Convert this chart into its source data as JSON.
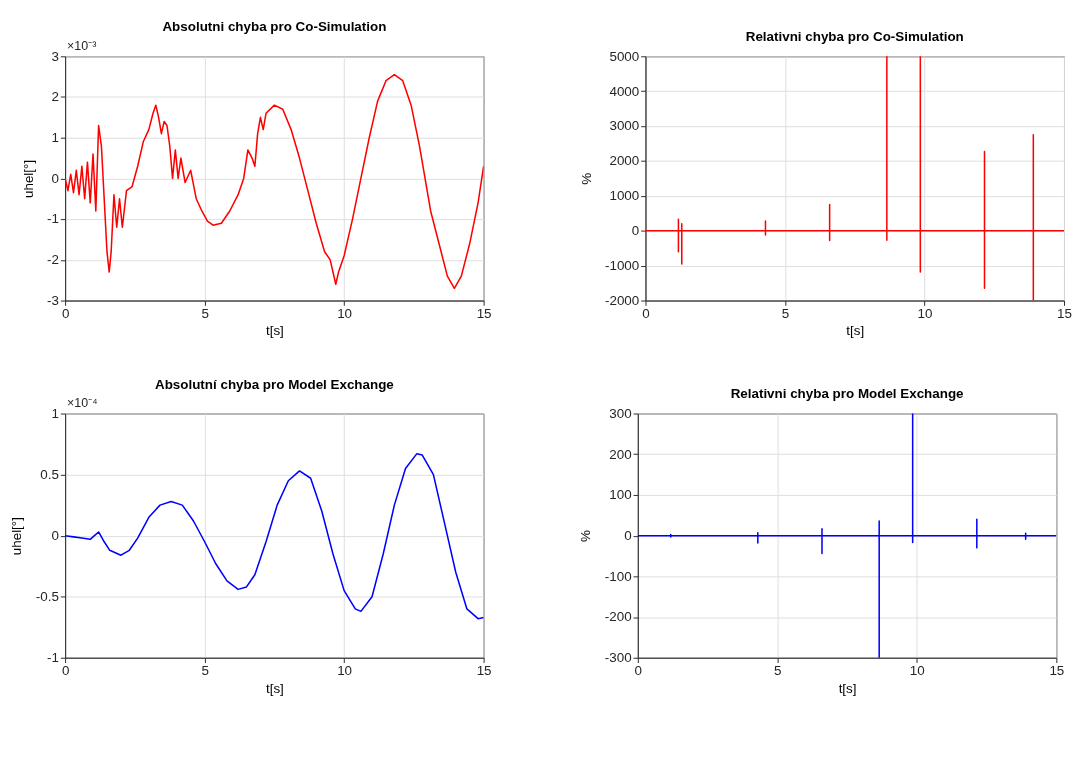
{
  "chart_data": [
    {
      "type": "line",
      "title": "Absolutni chyba pro Co-Simulation",
      "xlabel": "t[s]",
      "ylabel": "uhel[°]",
      "annotations": [
        "×10⁻³"
      ],
      "xlim": [
        0,
        15
      ],
      "xticks": [
        0,
        5,
        10,
        15
      ],
      "ylim": [
        -3,
        3
      ],
      "yticks": [
        -3,
        -2,
        -1,
        0,
        1,
        2,
        3
      ],
      "grid": true,
      "series": [
        {
          "color": "#ff0000",
          "x": [
            0,
            0.1,
            0.2,
            0.3,
            0.4,
            0.5,
            0.6,
            0.7,
            0.8,
            0.9,
            1.0,
            1.1,
            1.2,
            1.3,
            1.4,
            1.5,
            1.58,
            1.65,
            1.75,
            1.85,
            1.95,
            2.05,
            2.2,
            2.4,
            2.6,
            2.8,
            3.0,
            3.15,
            3.25,
            3.35,
            3.45,
            3.55,
            3.65,
            3.75,
            3.85,
            3.95,
            4.05,
            4.15,
            4.3,
            4.5,
            4.7,
            4.9,
            5.1,
            5.3,
            5.6,
            5.9,
            6.2,
            6.4,
            6.55,
            6.7,
            6.8,
            6.9,
            7.0,
            7.1,
            7.2,
            7.5,
            7.8,
            8.1,
            8.4,
            8.7,
            9.0,
            9.3,
            9.5,
            9.6,
            9.7,
            9.8,
            10.0,
            10.3,
            10.6,
            10.9,
            11.2,
            11.5,
            11.8,
            12.1,
            12.4,
            12.7,
            12.9,
            13.0,
            13.1,
            13.4,
            13.7,
            13.95,
            14.2,
            14.5,
            14.8,
            15
          ],
          "values": [
            0,
            -0.3,
            0.1,
            -0.35,
            0.2,
            -0.4,
            0.3,
            -0.5,
            0.4,
            -0.6,
            0.6,
            -0.8,
            1.3,
            0.8,
            -0.5,
            -1.8,
            -2.3,
            -1.8,
            -0.4,
            -1.2,
            -0.5,
            -1.2,
            -0.3,
            -0.2,
            0.3,
            0.9,
            1.2,
            1.6,
            1.8,
            1.5,
            1.1,
            1.4,
            1.3,
            0.8,
            0.0,
            0.7,
            0.0,
            0.5,
            -0.1,
            0.2,
            -0.5,
            -0.8,
            -1.05,
            -1.15,
            -1.1,
            -0.8,
            -0.4,
            0.0,
            0.7,
            0.5,
            0.3,
            1.1,
            1.5,
            1.2,
            1.6,
            1.8,
            1.7,
            1.2,
            0.5,
            -0.3,
            -1.1,
            -1.8,
            -2.0,
            -2.3,
            -2.6,
            -2.3,
            -1.9,
            -1.0,
            0.0,
            1.0,
            1.9,
            2.4,
            2.55,
            2.4,
            1.8,
            0.8,
            0.0,
            -0.4,
            -0.8,
            -1.6,
            -2.4,
            -2.7,
            -2.4,
            -1.6,
            -0.6,
            0.3
          ]
        }
      ]
    },
    {
      "type": "line",
      "title": "Relativni chyba pro Co-Simulation",
      "xlabel": "t[s]",
      "ylabel": "%",
      "xlim": [
        0,
        15
      ],
      "xticks": [
        0,
        5,
        10,
        15
      ],
      "ylim": [
        -2000,
        5000
      ],
      "yticks": [
        -2000,
        -1000,
        0,
        1000,
        2000,
        3000,
        4000,
        5000
      ],
      "grid": true,
      "series": [
        {
          "color": "#ff0000",
          "x": [
            0,
            1.18,
            1.18,
            1.18,
            1.18,
            1.3,
            1.3,
            1.3,
            1.3,
            4.3,
            4.3,
            4.3,
            4.3,
            6.6,
            6.6,
            6.6,
            6.6,
            8.65,
            8.65,
            8.65,
            8.65,
            9.85,
            9.85,
            9.85,
            9.85,
            12.15,
            12.15,
            12.15,
            12.15,
            13.9,
            13.9,
            13.9,
            13.9,
            15
          ],
          "values": [
            0,
            0,
            330,
            -600,
            0,
            0,
            200,
            -950,
            0,
            0,
            280,
            -120,
            0,
            0,
            750,
            -280,
            0,
            0,
            5000,
            -270,
            0,
            0,
            5000,
            -1180,
            0,
            0,
            2270,
            -1650,
            0,
            0,
            2750,
            -2000,
            0,
            0
          ]
        }
      ]
    },
    {
      "type": "line",
      "title": "Absolutní chyba pro Model Exchange",
      "xlabel": "t[s]",
      "ylabel": "uhel[°]",
      "annotations": [
        "×10⁻⁴"
      ],
      "xlim": [
        0,
        15
      ],
      "xticks": [
        0,
        5,
        10,
        15
      ],
      "ylim": [
        -1,
        1
      ],
      "yticks": [
        -1,
        -0.5,
        0,
        0.5,
        1
      ],
      "grid": true,
      "series": [
        {
          "color": "#0000ff",
          "x": [
            0,
            0.3,
            0.6,
            0.9,
            1.05,
            1.2,
            1.4,
            1.6,
            1.8,
            2.0,
            2.3,
            2.6,
            3.0,
            3.4,
            3.8,
            4.2,
            4.6,
            5.0,
            5.4,
            5.8,
            6.2,
            6.5,
            6.8,
            7.2,
            7.6,
            8.0,
            8.4,
            8.8,
            9.2,
            9.6,
            10.0,
            10.4,
            10.6,
            11.0,
            11.4,
            11.8,
            12.2,
            12.6,
            12.8,
            13.2,
            13.6,
            14.0,
            14.4,
            14.8,
            15
          ],
          "values": [
            0,
            -0.01,
            -0.02,
            -0.03,
            0.0,
            0.03,
            -0.05,
            -0.12,
            -0.14,
            -0.16,
            -0.12,
            -0.02,
            0.15,
            0.25,
            0.28,
            0.25,
            0.12,
            -0.05,
            -0.23,
            -0.37,
            -0.44,
            -0.42,
            -0.32,
            -0.05,
            0.25,
            0.45,
            0.53,
            0.47,
            0.2,
            -0.15,
            -0.45,
            -0.6,
            -0.62,
            -0.5,
            -0.15,
            0.25,
            0.55,
            0.67,
            0.66,
            0.5,
            0.1,
            -0.3,
            -0.6,
            -0.68,
            -0.67
          ]
        }
      ]
    },
    {
      "type": "line",
      "title": "Relativni chyba pro Model Exchange",
      "xlabel": "t[s]",
      "ylabel": "%",
      "xlim": [
        0,
        15
      ],
      "xticks": [
        0,
        5,
        10,
        15
      ],
      "ylim": [
        -300,
        300
      ],
      "yticks": [
        -300,
        -200,
        -100,
        0,
        100,
        200,
        300
      ],
      "grid": true,
      "series": [
        {
          "color": "#0000ff",
          "x": [
            0,
            1.18,
            1.18,
            1.18,
            1.18,
            4.3,
            4.3,
            4.3,
            4.3,
            6.6,
            6.6,
            6.6,
            6.6,
            8.65,
            8.65,
            8.65,
            8.65,
            9.85,
            9.85,
            9.85,
            9.85,
            12.15,
            12.15,
            12.15,
            12.15,
            13.9,
            13.9,
            13.9,
            13.9,
            15
          ],
          "values": [
            0,
            0,
            3,
            -3,
            0,
            0,
            7,
            -18,
            0,
            0,
            17,
            -44,
            0,
            0,
            36,
            -300,
            0,
            0,
            300,
            -17,
            0,
            0,
            40,
            -30,
            0,
            0,
            6,
            -9,
            0,
            0
          ]
        }
      ]
    }
  ]
}
